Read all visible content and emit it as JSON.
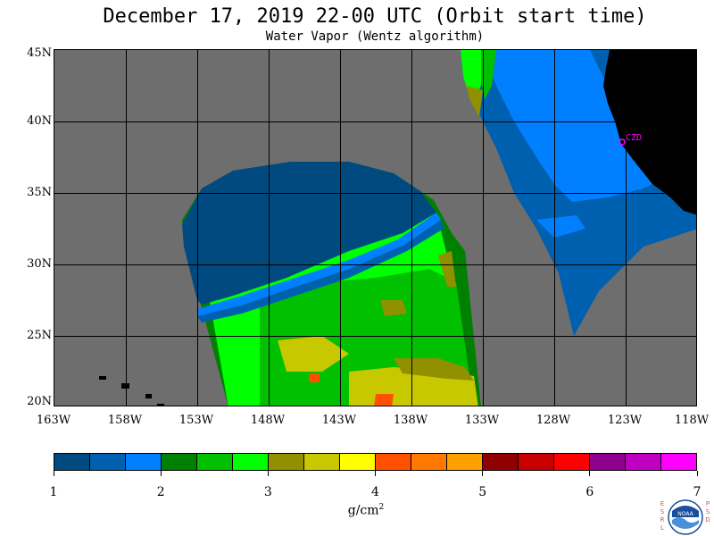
{
  "header": {
    "title": "December 17, 2019  22-00 UTC  (Orbit start time)",
    "subtitle": "Water Vapor (Wentz algorithm)"
  },
  "map": {
    "lat_labels": [
      "45N",
      "40N",
      "35N",
      "30N",
      "25N",
      "20N"
    ],
    "lon_labels": [
      "163W",
      "158W",
      "153W",
      "148W",
      "143W",
      "138W",
      "133W",
      "128W",
      "123W",
      "118W"
    ],
    "station_label": "CZD",
    "colors": {
      "background": "#6e6e6e",
      "land": "#000000",
      "grid": "#000000",
      "station": "#ff00ff"
    }
  },
  "colorbar": {
    "tick_labels": [
      "1",
      "2",
      "3",
      "4",
      "5",
      "6",
      "7"
    ],
    "units": "g/cm",
    "units_sup": "2",
    "colors": [
      "#004a80",
      "#0060b0",
      "#0080ff",
      "#008000",
      "#00c000",
      "#00ff00",
      "#909000",
      "#c8c800",
      "#ffff00",
      "#ff5000",
      "#ff7800",
      "#ffa000",
      "#900000",
      "#c80000",
      "#ff0000",
      "#900090",
      "#c000c0",
      "#ff00ff"
    ]
  },
  "logo": {
    "left_letters": [
      "E",
      "S",
      "R",
      "L"
    ],
    "right_letters": [
      "P",
      "S",
      "D"
    ],
    "center_text": "NOAA"
  }
}
